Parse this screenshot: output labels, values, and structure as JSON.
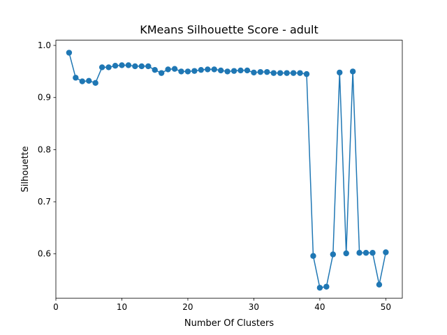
{
  "chart_data": {
    "type": "line",
    "title": "KMeans Silhouette Score - adult",
    "xlabel": "Number Of Clusters",
    "ylabel": "Silhouette",
    "xlim": [
      0,
      52.5
    ],
    "ylim": [
      0.515,
      1.01
    ],
    "xticks": [
      0,
      10,
      20,
      30,
      40,
      50
    ],
    "yticks": [
      0.6,
      0.7,
      0.8,
      0.9,
      1.0
    ],
    "xtick_labels": [
      "0",
      "10",
      "20",
      "30",
      "40",
      "50"
    ],
    "ytick_labels": [
      "0.6",
      "0.7",
      "0.8",
      "0.9",
      "1.0"
    ],
    "grid": false,
    "legend": "none",
    "series": [
      {
        "color": "#1f77b4",
        "marker": "circle",
        "x": [
          2,
          3,
          4,
          5,
          6,
          7,
          8,
          9,
          10,
          11,
          12,
          13,
          14,
          15,
          16,
          17,
          18,
          19,
          20,
          21,
          22,
          23,
          24,
          25,
          26,
          27,
          28,
          29,
          30,
          31,
          32,
          33,
          34,
          35,
          36,
          37,
          38,
          39,
          40,
          41,
          42,
          43,
          44,
          45,
          46,
          47,
          48,
          49,
          50
        ],
        "y": [
          0.986,
          0.938,
          0.931,
          0.932,
          0.928,
          0.958,
          0.958,
          0.961,
          0.962,
          0.962,
          0.96,
          0.96,
          0.96,
          0.953,
          0.947,
          0.954,
          0.955,
          0.95,
          0.95,
          0.951,
          0.953,
          0.954,
          0.954,
          0.952,
          0.95,
          0.951,
          0.952,
          0.952,
          0.948,
          0.949,
          0.949,
          0.947,
          0.947,
          0.947,
          0.947,
          0.947,
          0.945,
          0.596,
          0.535,
          0.537,
          0.599,
          0.948,
          0.601,
          0.95,
          0.602,
          0.602,
          0.602,
          0.541,
          0.603
        ]
      }
    ]
  }
}
